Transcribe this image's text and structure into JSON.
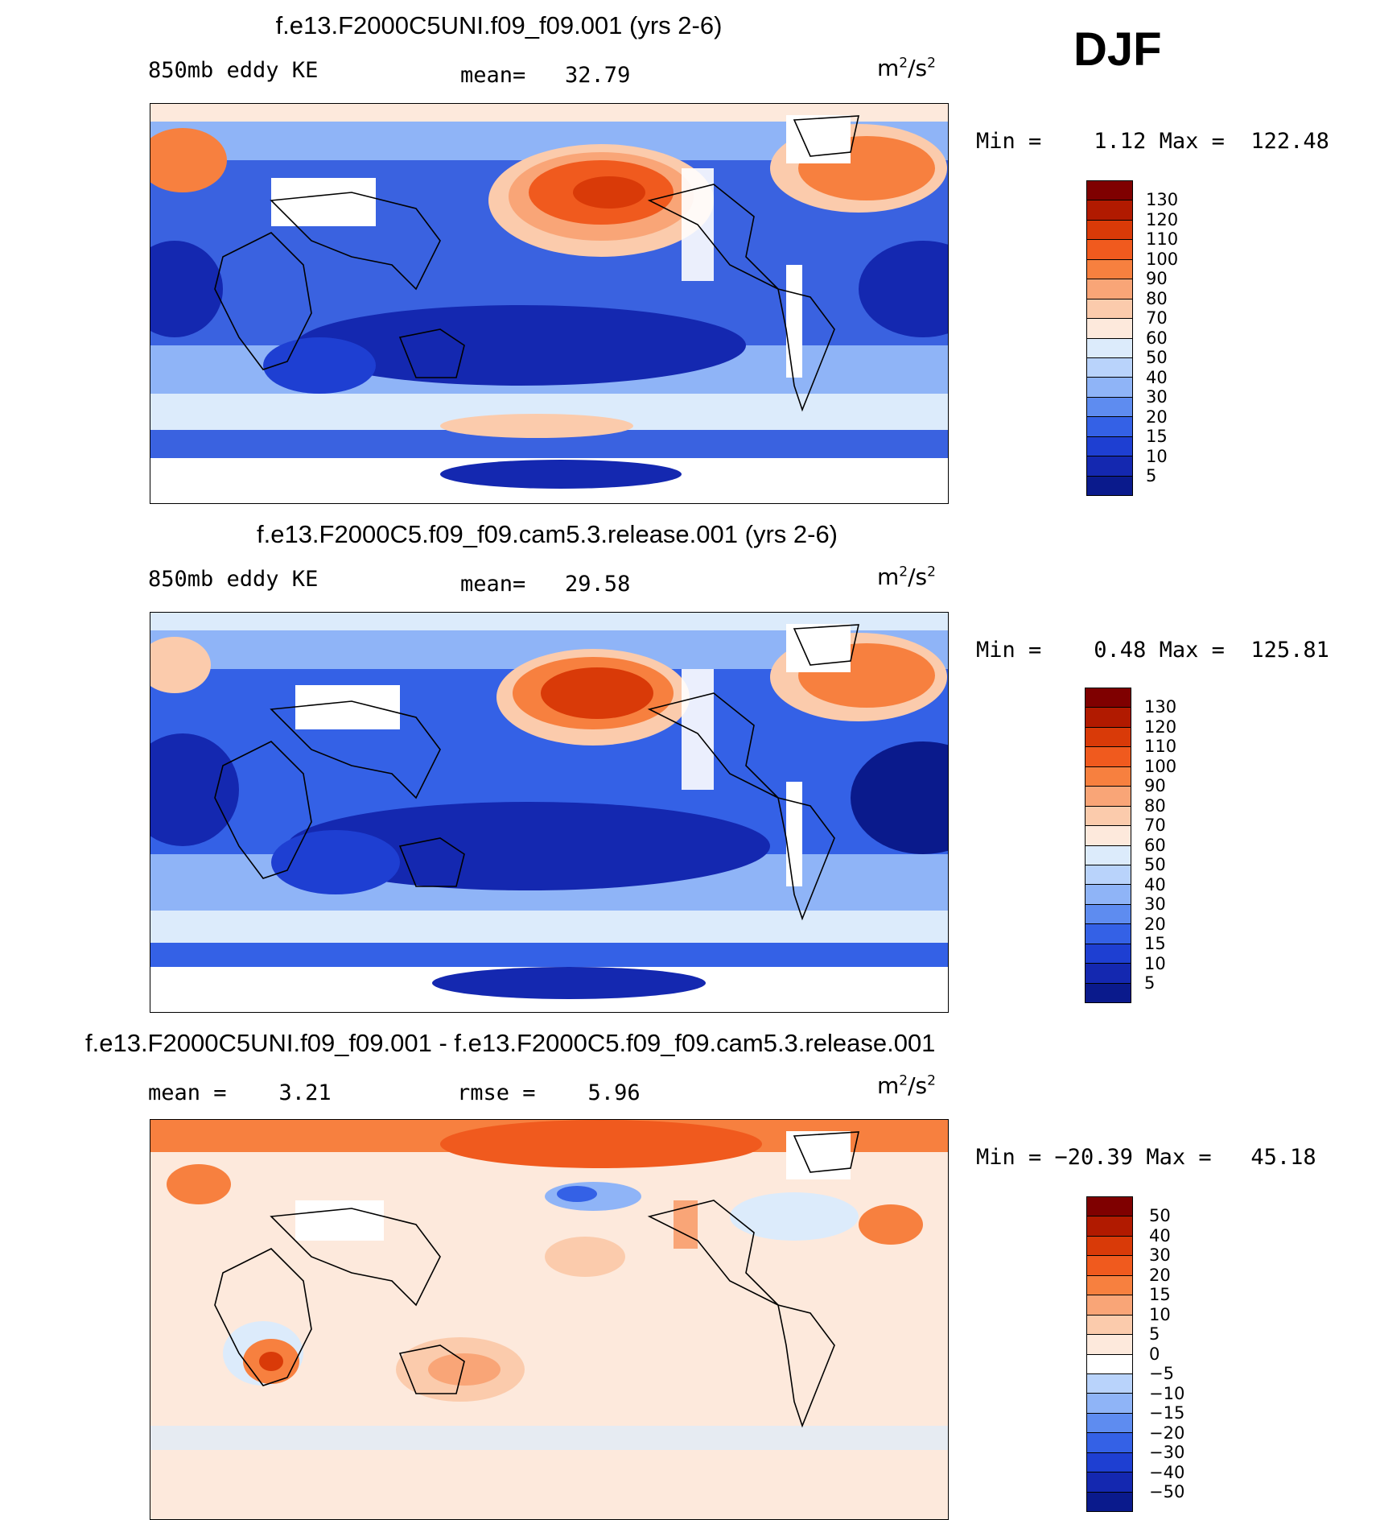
{
  "season": "DJF",
  "units": {
    "base": "m",
    "exp": "2",
    "div": "/s",
    "exp2": "2"
  },
  "panels": [
    {
      "title": "f.e13.F2000C5UNI.f09_f09.001 (yrs 2-6)",
      "left_label": "850mb eddy KE",
      "stat1": "mean=   32.79",
      "stat2": "",
      "minmax": "Min =    1.12 Max =  122.48",
      "colorbar": {
        "labels": [
          "130",
          "120",
          "110",
          "100",
          "90",
          "80",
          "70",
          "60",
          "50",
          "40",
          "30",
          "20",
          "15",
          "10",
          "5"
        ],
        "colors": [
          "#7f0000",
          "#b11a00",
          "#d93a08",
          "#f05a1e",
          "#f7803f",
          "#f9a577",
          "#fbcbac",
          "#fde9dc",
          "#dcebfb",
          "#b9d3fb",
          "#8fb4f7",
          "#5e8cf0",
          "#3461e6",
          "#1e3fd2",
          "#1428b0",
          "#0a1a8c"
        ]
      }
    },
    {
      "title": "f.e13.F2000C5.f09_f09.cam5.3.release.001 (yrs 2-6)",
      "left_label": "850mb eddy KE",
      "stat1": "mean=   29.58",
      "stat2": "",
      "minmax": "Min =    0.48 Max =  125.81",
      "colorbar": {
        "labels": [
          "130",
          "120",
          "110",
          "100",
          "90",
          "80",
          "70",
          "60",
          "50",
          "40",
          "30",
          "20",
          "15",
          "10",
          "5"
        ],
        "colors": [
          "#7f0000",
          "#b11a00",
          "#d93a08",
          "#f05a1e",
          "#f7803f",
          "#f9a577",
          "#fbcbac",
          "#fde9dc",
          "#dcebfb",
          "#b9d3fb",
          "#8fb4f7",
          "#5e8cf0",
          "#3461e6",
          "#1e3fd2",
          "#1428b0",
          "#0a1a8c"
        ]
      }
    },
    {
      "title": "f.e13.F2000C5UNI.f09_f09.001 - f.e13.F2000C5.f09_f09.cam5.3.release.001",
      "left_label": "",
      "stat1": "mean =    3.21",
      "stat2": "rmse =    5.96",
      "minmax": "Min = −20.39 Max =   45.18",
      "colorbar": {
        "labels": [
          "50",
          "40",
          "30",
          "20",
          "15",
          "10",
          "5",
          "0",
          "−5",
          "−10",
          "−15",
          "−20",
          "−30",
          "−40",
          "−50"
        ],
        "colors": [
          "#7f0000",
          "#b11a00",
          "#d93a08",
          "#f05a1e",
          "#f7803f",
          "#f9a577",
          "#fbcbac",
          "#fde9dc",
          "#ffffff",
          "#b9d3fb",
          "#8fb4f7",
          "#5e8cf0",
          "#3461e6",
          "#1e3fd2",
          "#1428b0",
          "#0a1a8c"
        ]
      }
    }
  ]
}
